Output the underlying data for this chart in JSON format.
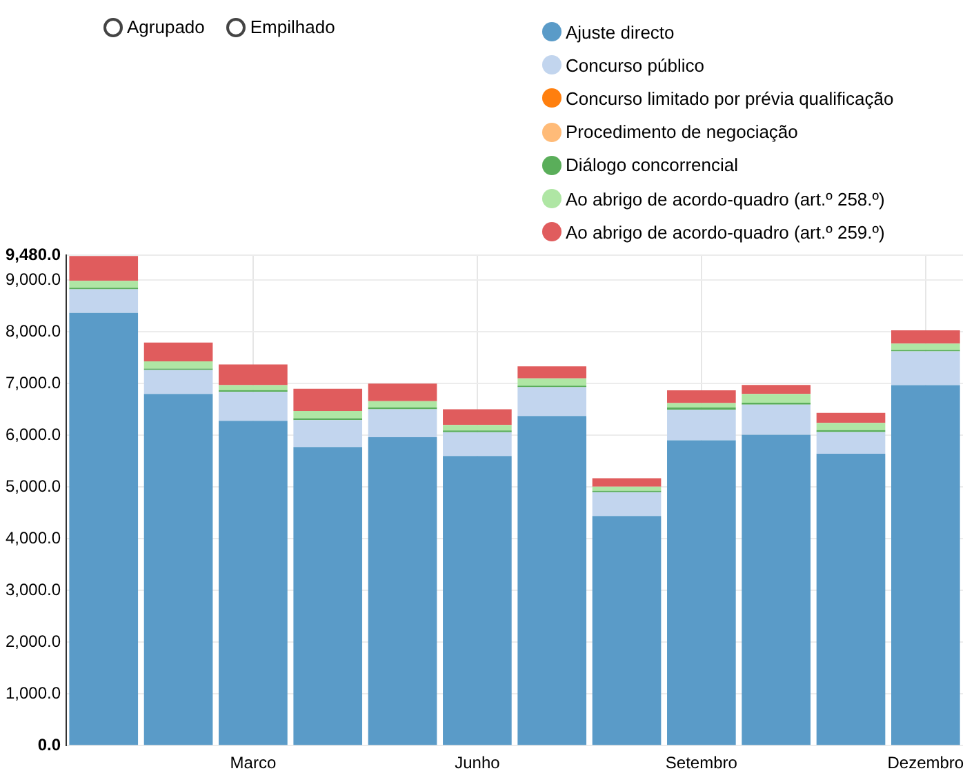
{
  "chart_data": {
    "type": "bar",
    "stacked": true,
    "legend": "top right",
    "grid": true,
    "annotations": [
      "Agrupado",
      "Empilhado"
    ],
    "categories": [
      null,
      null,
      "Marco",
      null,
      null,
      "Junho",
      null,
      null,
      "Setembro",
      null,
      null,
      "Dezembro"
    ],
    "ylim": [
      0,
      9480
    ],
    "yticks": [
      {
        "value": 0,
        "label": "0.0"
      },
      {
        "value": 1000,
        "label": "1,000.0"
      },
      {
        "value": 2000,
        "label": "2,000.0"
      },
      {
        "value": 3000,
        "label": "3,000.0"
      },
      {
        "value": 4000,
        "label": "4,000.0"
      },
      {
        "value": 5000,
        "label": "5,000.0"
      },
      {
        "value": 6000,
        "label": "6,000.0"
      },
      {
        "value": 7000,
        "label": "7,000.0"
      },
      {
        "value": 8000,
        "label": "8,000.0"
      },
      {
        "value": 9000,
        "label": "9,000.0"
      },
      {
        "value": 9480,
        "label": "9,480.0"
      }
    ],
    "series": [
      {
        "name": "Ajuste directo",
        "color": "#5a9bc8",
        "values": [
          8370,
          6800,
          6280,
          5775,
          5965,
          5600,
          6375,
          4440,
          5905,
          6010,
          5645,
          6970
        ]
      },
      {
        "name": "Concurso público",
        "color": "#c2d5ee",
        "values": [
          455,
          465,
          560,
          520,
          540,
          460,
          555,
          460,
          590,
          585,
          420,
          655
        ]
      },
      {
        "name": "Concurso limitado por prévia qualificação",
        "color": "#ff7f0e",
        "values": [
          0,
          0,
          0,
          0,
          0,
          0,
          0,
          0,
          0,
          0,
          0,
          0
        ]
      },
      {
        "name": "Procedimento de negociação",
        "color": "#ffbb78",
        "values": [
          0,
          0,
          0,
          0,
          0,
          0,
          0,
          0,
          0,
          0,
          0,
          0
        ]
      },
      {
        "name": "Diálogo concorrencial",
        "color": "#5aae5a",
        "values": [
          30,
          26,
          35,
          35,
          35,
          35,
          30,
          27,
          45,
          35,
          35,
          25
        ]
      },
      {
        "name": "Ao abrigo de acordo-quadro (art.º 258.º)",
        "color": "#afe6a4",
        "values": [
          135,
          140,
          95,
          140,
          120,
          105,
          140,
          80,
          85,
          170,
          140,
          125
        ]
      },
      {
        "name": "Ao abrigo de acordo-quadro (art.º 259.º)",
        "color": "#e05c5d",
        "values": [
          480,
          365,
          400,
          430,
          340,
          305,
          235,
          165,
          245,
          175,
          195,
          255
        ]
      }
    ]
  }
}
